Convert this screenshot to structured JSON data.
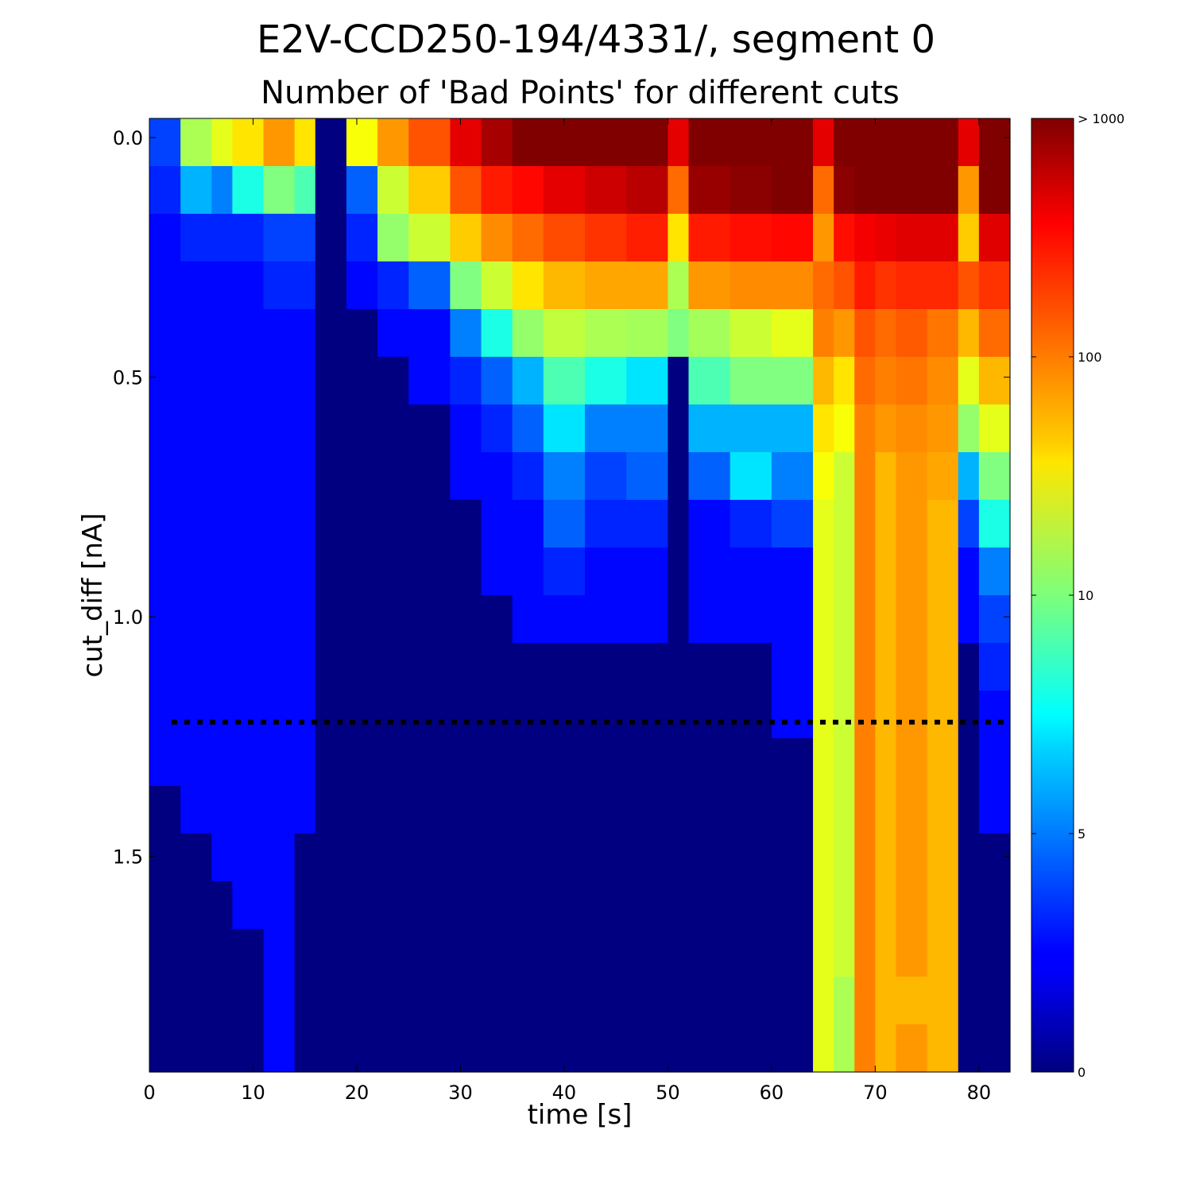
{
  "figure": {
    "suptitle": "E2V-CCD250-194/4331/, segment 0",
    "title": "Number of 'Bad Points' for different cuts"
  },
  "chart_data": {
    "type": "heatmap",
    "title": "Number of 'Bad Points' for different cuts",
    "xlabel": "time [s]",
    "ylabel": "cut_diff [nA]",
    "xlim": [
      0,
      83
    ],
    "ylim": [
      1.95,
      -0.04
    ],
    "x_ticks": [
      0,
      10,
      20,
      30,
      40,
      50,
      60,
      70,
      80
    ],
    "y_ticks": [
      0.0,
      0.5,
      1.0,
      1.5
    ],
    "y_tick_labels": [
      "0.0",
      "0.5",
      "1.0",
      "1.5"
    ],
    "colormap": "jet",
    "color_scale": "log",
    "colorbar_ticks": [
      0,
      5,
      10,
      100,
      1000
    ],
    "colorbar_tick_labels": [
      "0",
      "5",
      "10",
      "100",
      "> 1000"
    ],
    "cut_line": {
      "y": 1.22,
      "style": "dotted",
      "color": "#000000"
    },
    "row_cuts": [
      0.0,
      0.1,
      0.2,
      0.3,
      0.4,
      0.5,
      0.6,
      0.7,
      0.8,
      0.9,
      1.0,
      1.1,
      1.2,
      1.3,
      1.4,
      1.5,
      1.6,
      1.7,
      1.8,
      1.9
    ],
    "time_bins": {
      "x_start": [
        0,
        3,
        6,
        8,
        11,
        14,
        16,
        19,
        22,
        25,
        29,
        32,
        35,
        38,
        42,
        46,
        50,
        52,
        56,
        60,
        64,
        66,
        68,
        70,
        72,
        75,
        78,
        80
      ],
      "x_end": [
        3,
        6,
        8,
        11,
        14,
        16,
        19,
        22,
        25,
        29,
        32,
        35,
        38,
        42,
        46,
        50,
        52,
        56,
        60,
        64,
        66,
        68,
        70,
        72,
        75,
        78,
        80,
        83
      ]
    },
    "counts": [
      [
        3,
        15,
        25,
        40,
        80,
        40,
        0,
        30,
        80,
        150,
        400,
        700,
        1000,
        1500,
        1500,
        1500,
        400,
        1500,
        1500,
        1500,
        400,
        1500,
        1500,
        1500,
        1500,
        1500,
        400,
        1500
      ],
      [
        2,
        6,
        5,
        8,
        10,
        9,
        0,
        4,
        20,
        50,
        150,
        250,
        300,
        400,
        500,
        600,
        120,
        800,
        900,
        1000,
        120,
        900,
        1100,
        1200,
        1300,
        1300,
        80,
        1200
      ],
      [
        1,
        2,
        2,
        2,
        3,
        3,
        0,
        2,
        12,
        20,
        50,
        90,
        120,
        160,
        200,
        240,
        40,
        250,
        280,
        300,
        80,
        280,
        350,
        380,
        420,
        420,
        50,
        420
      ],
      [
        1,
        1,
        1,
        1,
        2,
        2,
        0,
        1,
        2,
        4,
        10,
        20,
        40,
        60,
        70,
        70,
        15,
        80,
        90,
        90,
        120,
        150,
        250,
        200,
        220,
        220,
        150,
        200
      ],
      [
        1,
        1,
        1,
        1,
        1,
        1,
        0,
        0,
        1,
        1,
        5,
        8,
        12,
        18,
        15,
        14,
        10,
        14,
        20,
        25,
        100,
        80,
        150,
        120,
        140,
        110,
        60,
        120
      ],
      [
        1,
        1,
        1,
        1,
        1,
        1,
        0,
        0,
        0,
        1,
        2,
        4,
        6,
        9,
        8,
        7,
        0,
        9,
        10,
        10,
        60,
        40,
        120,
        100,
        110,
        90,
        25,
        60
      ],
      [
        1,
        1,
        1,
        1,
        1,
        1,
        0,
        0,
        0,
        0,
        1,
        2,
        4,
        7,
        5,
        5,
        0,
        6,
        6,
        6,
        40,
        30,
        100,
        80,
        90,
        80,
        12,
        25
      ],
      [
        1,
        1,
        1,
        1,
        1,
        1,
        0,
        0,
        0,
        0,
        1,
        1,
        2,
        5,
        3,
        4,
        0,
        4,
        7,
        5,
        30,
        20,
        100,
        60,
        80,
        70,
        6,
        10
      ],
      [
        1,
        1,
        1,
        1,
        1,
        1,
        0,
        0,
        0,
        0,
        0,
        1,
        1,
        4,
        2,
        2,
        0,
        1,
        2,
        3,
        25,
        20,
        100,
        60,
        80,
        60,
        3,
        8
      ],
      [
        1,
        1,
        1,
        1,
        1,
        1,
        0,
        0,
        0,
        0,
        0,
        1,
        1,
        2,
        1,
        1,
        0,
        1,
        1,
        1,
        25,
        20,
        100,
        60,
        80,
        60,
        1,
        5
      ],
      [
        1,
        1,
        1,
        1,
        1,
        1,
        0,
        0,
        0,
        0,
        0,
        0,
        1,
        1,
        1,
        1,
        0,
        1,
        1,
        1,
        25,
        20,
        100,
        60,
        80,
        60,
        1,
        3
      ],
      [
        1,
        1,
        1,
        1,
        1,
        1,
        0,
        0,
        0,
        0,
        0,
        0,
        0,
        0,
        0,
        0,
        0,
        0,
        0,
        1,
        25,
        20,
        100,
        60,
        80,
        60,
        0,
        2
      ],
      [
        1,
        1,
        1,
        1,
        1,
        1,
        0,
        0,
        0,
        0,
        0,
        0,
        0,
        0,
        0,
        0,
        0,
        0,
        0,
        1,
        25,
        20,
        100,
        60,
        80,
        60,
        0,
        1
      ],
      [
        1,
        1,
        1,
        1,
        1,
        1,
        0,
        0,
        0,
        0,
        0,
        0,
        0,
        0,
        0,
        0,
        0,
        0,
        0,
        0,
        25,
        20,
        100,
        60,
        80,
        60,
        0,
        1
      ],
      [
        0,
        1,
        1,
        1,
        1,
        1,
        0,
        0,
        0,
        0,
        0,
        0,
        0,
        0,
        0,
        0,
        0,
        0,
        0,
        0,
        25,
        20,
        100,
        60,
        80,
        60,
        0,
        1
      ],
      [
        0,
        0,
        1,
        1,
        1,
        0,
        0,
        0,
        0,
        0,
        0,
        0,
        0,
        0,
        0,
        0,
        0,
        0,
        0,
        0,
        25,
        20,
        100,
        60,
        80,
        60,
        0,
        0
      ],
      [
        0,
        0,
        0,
        1,
        1,
        0,
        0,
        0,
        0,
        0,
        0,
        0,
        0,
        0,
        0,
        0,
        0,
        0,
        0,
        0,
        25,
        20,
        100,
        60,
        80,
        60,
        0,
        0
      ],
      [
        0,
        0,
        0,
        0,
        1,
        0,
        0,
        0,
        0,
        0,
        0,
        0,
        0,
        0,
        0,
        0,
        0,
        0,
        0,
        0,
        25,
        20,
        100,
        60,
        80,
        60,
        0,
        0
      ],
      [
        0,
        0,
        0,
        0,
        1,
        0,
        0,
        0,
        0,
        0,
        0,
        0,
        0,
        0,
        0,
        0,
        0,
        0,
        0,
        0,
        25,
        15,
        100,
        60,
        60,
        60,
        0,
        0
      ],
      [
        0,
        0,
        0,
        0,
        1,
        0,
        0,
        0,
        0,
        0,
        0,
        0,
        0,
        0,
        0,
        0,
        0,
        0,
        0,
        0,
        25,
        15,
        100,
        60,
        80,
        60,
        0,
        0
      ]
    ]
  }
}
